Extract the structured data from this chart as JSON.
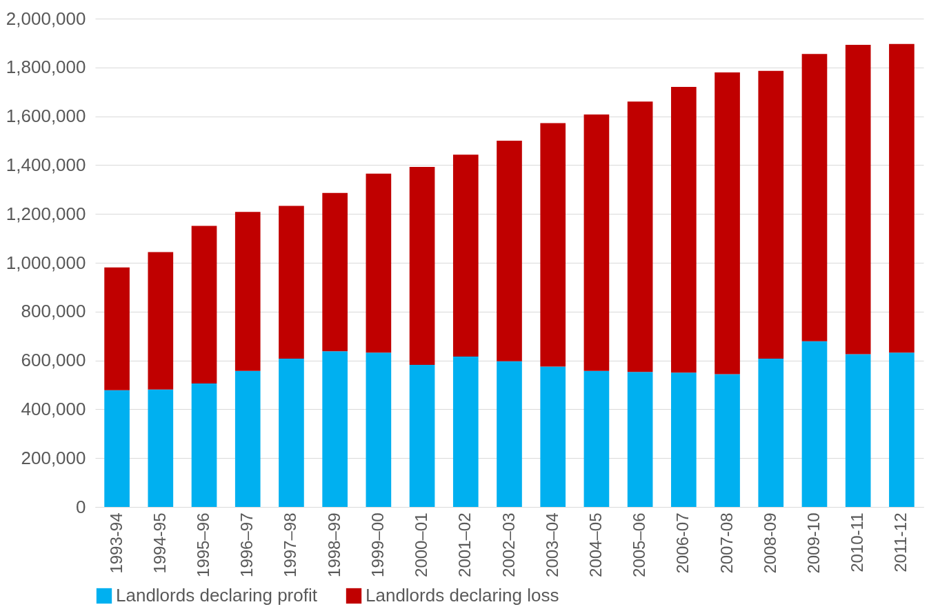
{
  "chart_data": {
    "type": "bar",
    "stacked": true,
    "categories": [
      "1993-94",
      "1994-95",
      "1995–96",
      "1996–97",
      "1997–98",
      "1998–99",
      "1999–00",
      "2000–01",
      "2001–02",
      "2002–03",
      "2003–04",
      "2004–05",
      "2005–06",
      "2006-07",
      "2007-08",
      "2008-09",
      "2009-10",
      "2010-11",
      "2011-12"
    ],
    "series": [
      {
        "name": "Landlords declaring profit",
        "color": "#00b0f0",
        "values": [
          478000,
          481000,
          506000,
          557000,
          607000,
          638000,
          632000,
          582000,
          616000,
          597000,
          575000,
          557000,
          553000,
          550000,
          544000,
          607000,
          679000,
          626000,
          632000
        ]
      },
      {
        "name": "Landlords declaring loss",
        "color": "#c00000",
        "values": [
          503000,
          563000,
          645000,
          651000,
          626000,
          648000,
          733000,
          811000,
          827000,
          903000,
          997000,
          1050000,
          1107000,
          1170000,
          1236000,
          1179000,
          1176000,
          1267000,
          1264000
        ]
      }
    ],
    "ylim": [
      0,
      2000000
    ],
    "yticks": [
      0,
      {
        "value": 200000,
        "label": "200,000"
      },
      {
        "value": 400000,
        "label": "400,000"
      },
      {
        "value": 600000,
        "label": "600,000"
      },
      {
        "value": 800000,
        "label": "800,000"
      },
      {
        "value": 1000000,
        "label": "1,000,000"
      },
      {
        "value": 1200000,
        "label": "1,200,000"
      },
      {
        "value": 1400000,
        "label": "1,400,000"
      },
      {
        "value": 1600000,
        "label": "1,600,000"
      },
      {
        "value": 1800000,
        "label": "1,800,000"
      },
      {
        "value": 2000000,
        "label": "2,000,000"
      }
    ],
    "grid": "y",
    "legend": "bottom"
  }
}
